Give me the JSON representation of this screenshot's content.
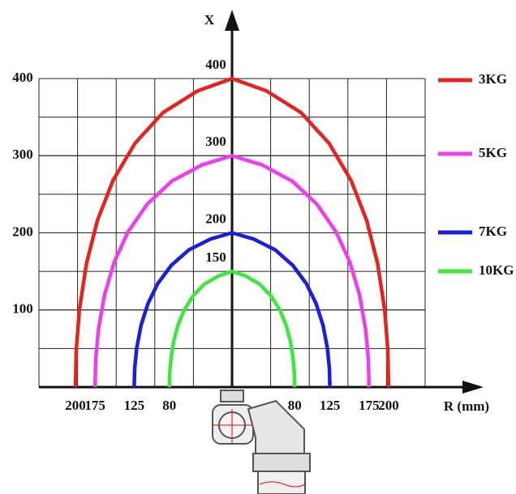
{
  "chart_data": {
    "type": "load-curve",
    "y_axis_title": "X",
    "x_axis_title": "R (mm)",
    "ylim": [
      0,
      400
    ],
    "yticks": [
      100,
      200,
      300,
      400
    ],
    "series": [
      {
        "name": "3KG",
        "color": "#e8231c",
        "max_x": 400,
        "max_r": 200
      },
      {
        "name": "5KG",
        "color": "#ee3cf0",
        "max_x": 300,
        "max_r": 175
      },
      {
        "name": "7KG",
        "color": "#1a1ee0",
        "max_x": 200,
        "max_r": 125
      },
      {
        "name": "10KG",
        "color": "#3ee83a",
        "max_x": 150,
        "max_r": 80
      }
    ]
  }
}
